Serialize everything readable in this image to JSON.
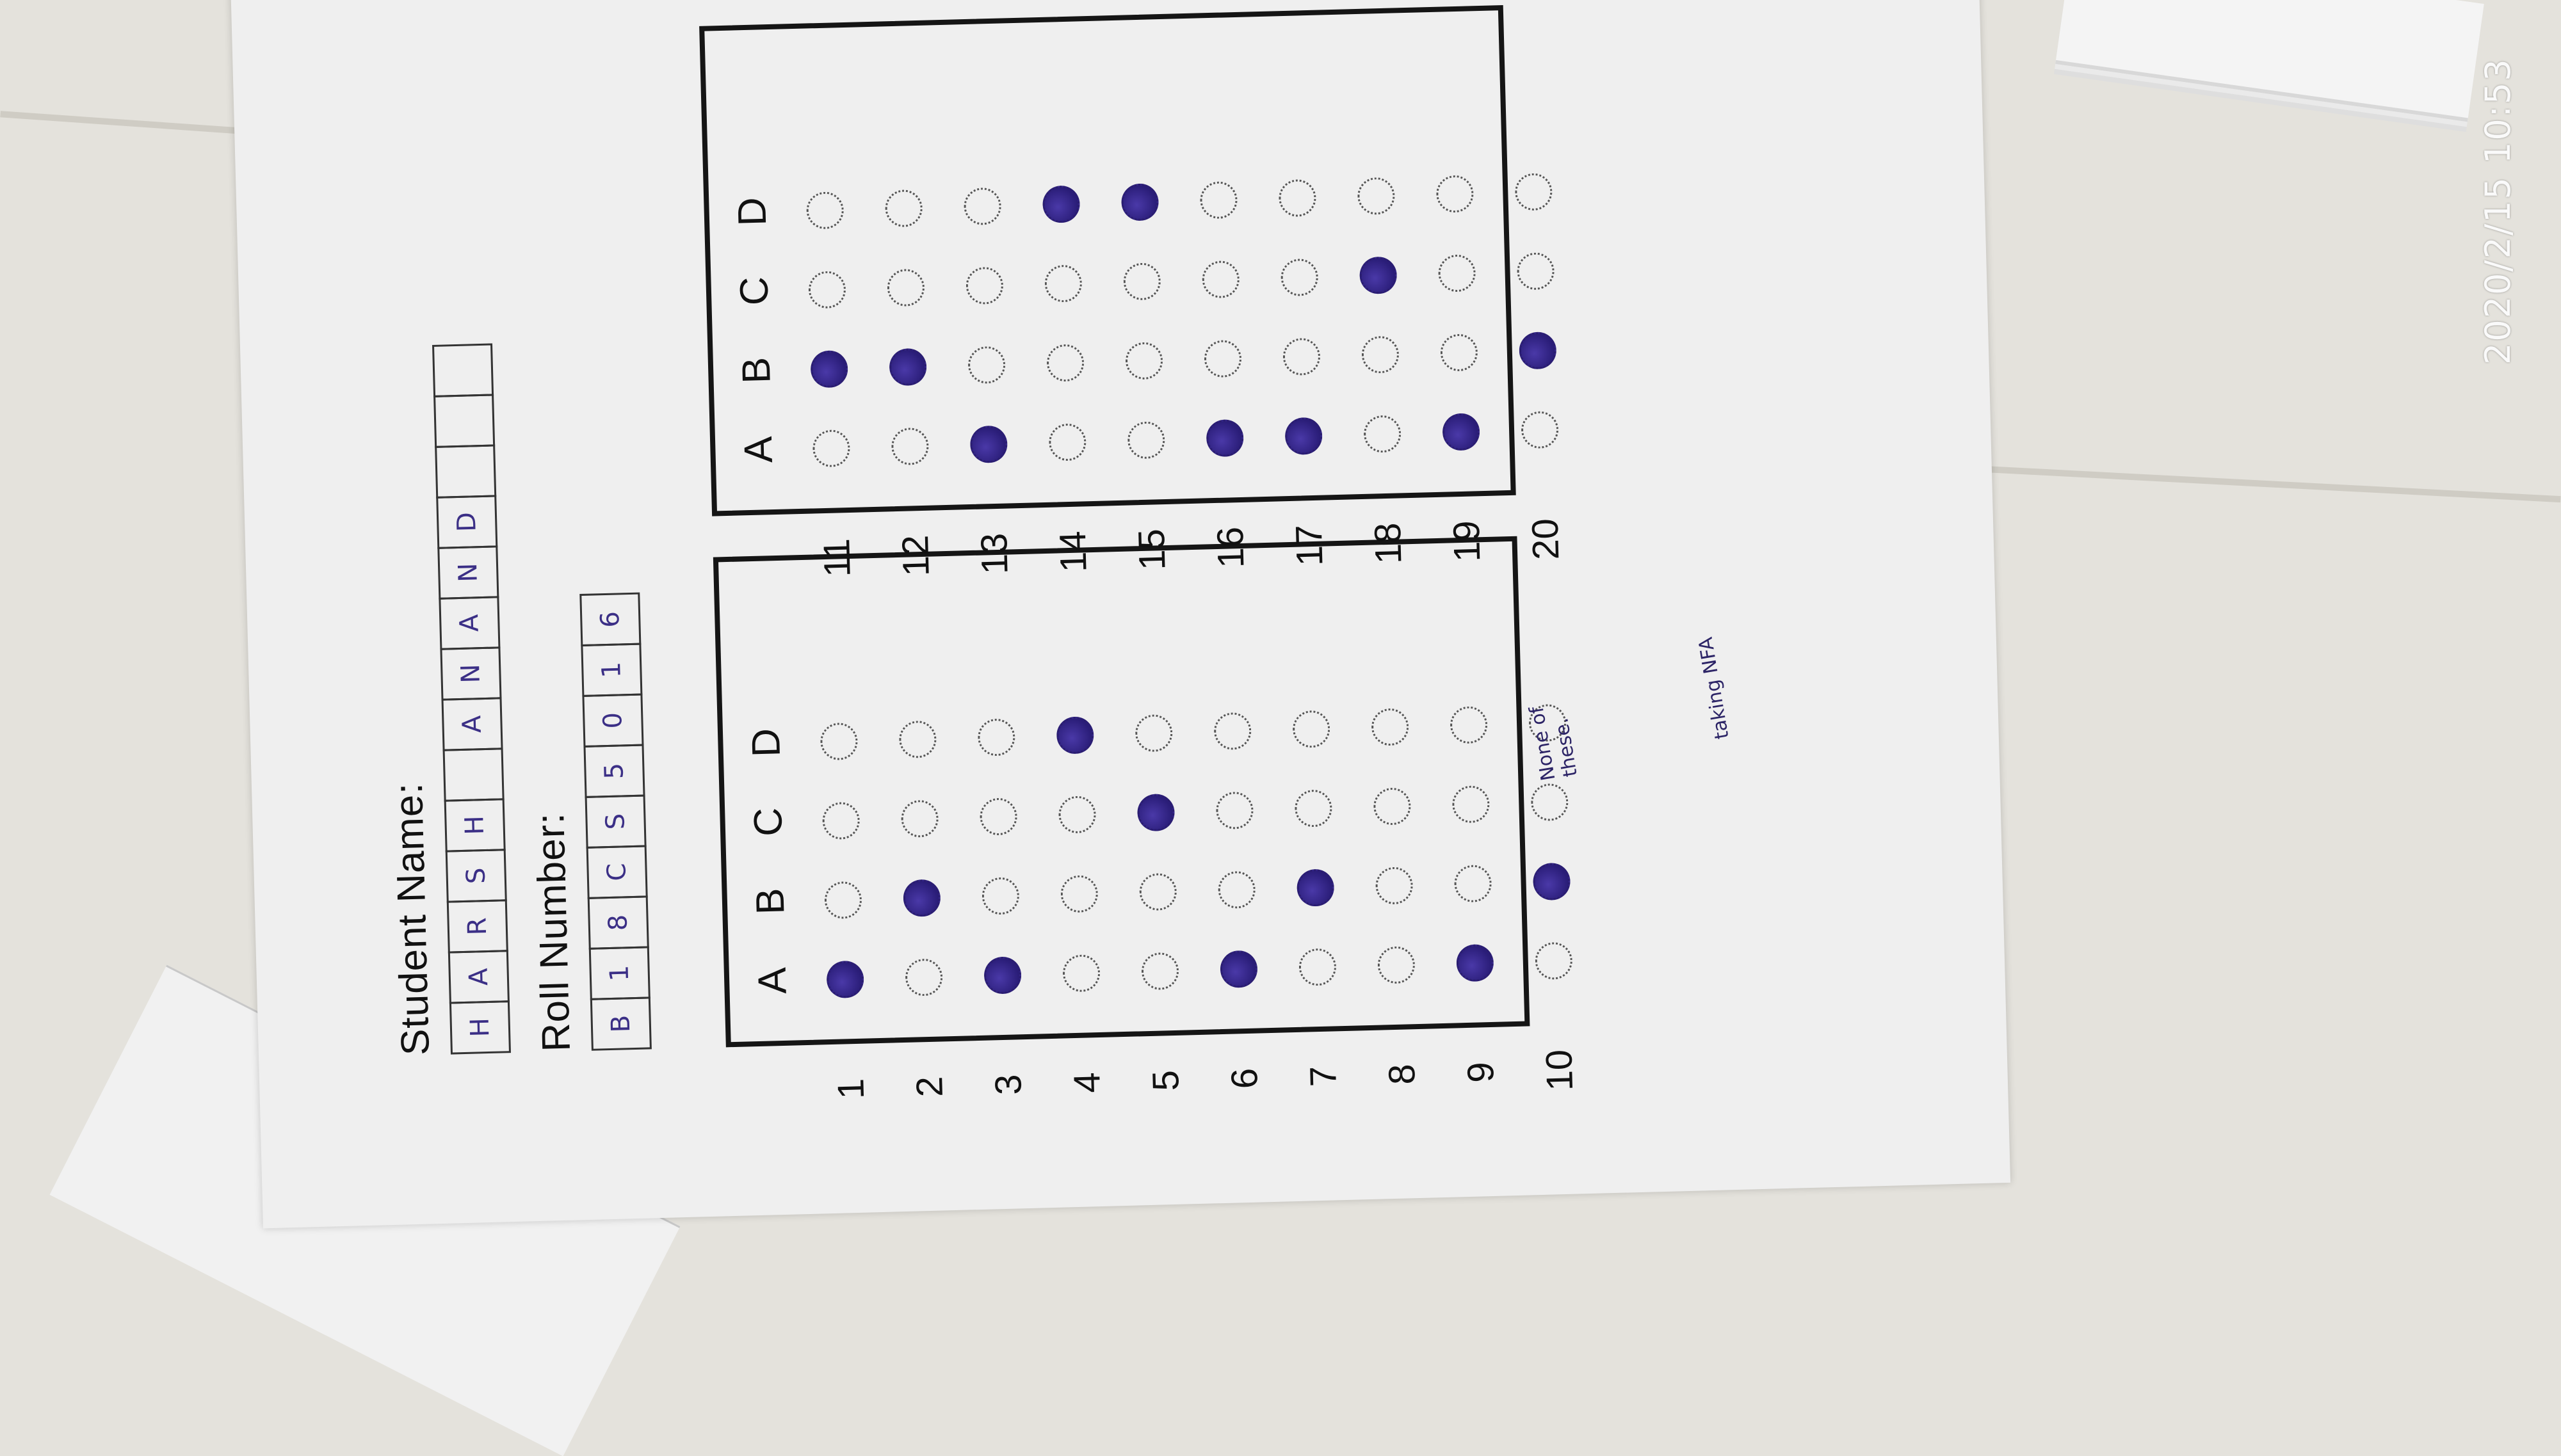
{
  "sheet": {
    "student_name_label": "Student Name:",
    "student_name_chars": [
      "H",
      "A",
      "R",
      "S",
      "H",
      "",
      "A",
      "N",
      "A",
      "N",
      "D",
      "",
      "",
      ""
    ],
    "roll_number_label": "Roll Number:",
    "roll_number_chars": [
      "B",
      "1",
      "8",
      "C",
      "S",
      "5",
      "0",
      "1",
      "6"
    ],
    "column_headers": [
      "A",
      "B",
      "C",
      "D"
    ],
    "questions": [
      {
        "num": "1",
        "answer": "A"
      },
      {
        "num": "2",
        "answer": "B"
      },
      {
        "num": "3",
        "answer": "A"
      },
      {
        "num": "4",
        "answer": "D"
      },
      {
        "num": "5",
        "answer": "C"
      },
      {
        "num": "6",
        "answer": "A"
      },
      {
        "num": "7",
        "answer": "B"
      },
      {
        "num": "8",
        "answer": ""
      },
      {
        "num": "9",
        "answer": "A"
      },
      {
        "num": "10",
        "answer": "B"
      },
      {
        "num": "11",
        "answer": "B"
      },
      {
        "num": "12",
        "answer": "B"
      },
      {
        "num": "13",
        "answer": "A"
      },
      {
        "num": "14",
        "answer": "D"
      },
      {
        "num": "15",
        "answer": "D"
      },
      {
        "num": "16",
        "answer": "A"
      },
      {
        "num": "17",
        "answer": "A"
      },
      {
        "num": "18",
        "answer": "C"
      },
      {
        "num": "19",
        "answer": "A"
      },
      {
        "num": "20",
        "answer": "B"
      }
    ],
    "note_line_1": "None of",
    "note_line_2": "these.",
    "note_2": "taking NFA"
  },
  "timestamp": "2020/2/15 10:53",
  "colors": {
    "ink": "#2a1d78",
    "paper": "#efefef"
  }
}
